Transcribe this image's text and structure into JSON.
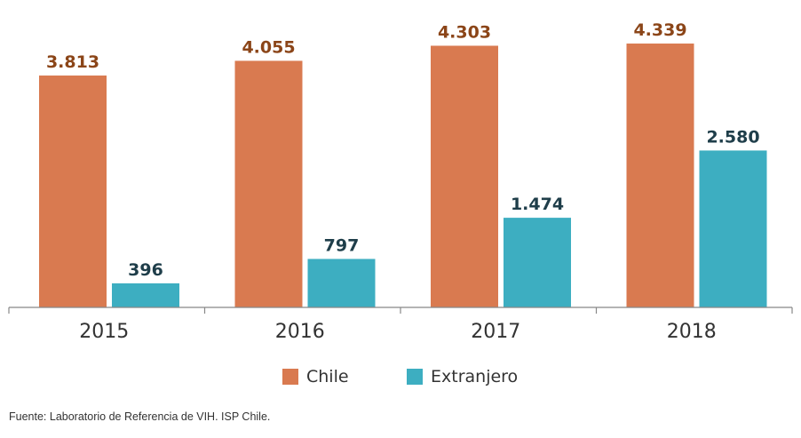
{
  "chart_data": {
    "type": "bar",
    "categories": [
      "2015",
      "2016",
      "2017",
      "2018"
    ],
    "series": [
      {
        "name": "Chile",
        "color": "#D97A50",
        "label_color": "#8B4518",
        "values": [
          3813,
          4055,
          4303,
          4339
        ],
        "value_labels": [
          "3.813",
          "4.055",
          "4.303",
          "4.339"
        ]
      },
      {
        "name": "Extranjero",
        "color": "#3DAEC1",
        "label_color": "#1F3E4A",
        "values": [
          396,
          797,
          1474,
          2580
        ],
        "value_labels": [
          "396",
          "797",
          "1.474",
          "2.580"
        ]
      }
    ],
    "ylim": [
      0,
      4500
    ],
    "grid": false,
    "legend_position": "bottom",
    "axis_color": "#888888"
  },
  "source": "Fuente: Laboratorio de Referencia de VIH. ISP Chile."
}
